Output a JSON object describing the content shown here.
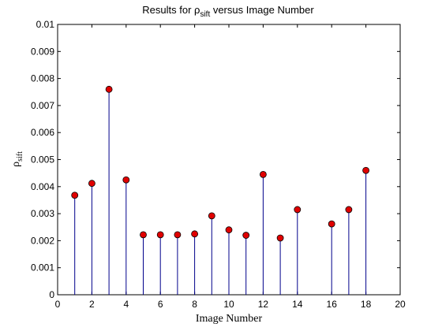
{
  "chart_data": {
    "type": "stem",
    "title": "Results for ρsift versus Image Number",
    "title_parts": {
      "pre": "Results for ",
      "symbol": "ρ",
      "sub": "sift",
      "post": " versus Image Number"
    },
    "xlabel": "Image Number",
    "ylabel": {
      "symbol": "ρ",
      "sub": "sift"
    },
    "xlim": [
      0,
      20
    ],
    "ylim": [
      0,
      0.01
    ],
    "x_ticks": [
      0,
      2,
      4,
      6,
      8,
      10,
      12,
      14,
      16,
      18,
      20
    ],
    "x_tick_labels": [
      "0",
      "2",
      "4",
      "6",
      "8",
      "10",
      "12",
      "14",
      "16",
      "18",
      "20"
    ],
    "y_ticks": [
      0,
      0.001,
      0.002,
      0.003,
      0.004,
      0.005,
      0.006,
      0.007,
      0.008,
      0.009,
      0.01
    ],
    "y_tick_labels": [
      "0",
      "0.001",
      "0.002",
      "0.003",
      "0.004",
      "0.005",
      "0.006",
      "0.007",
      "0.008",
      "0.009",
      "0.01"
    ],
    "grid": false,
    "stem_color": "#00008b",
    "marker_color": "#e00000",
    "series": [
      {
        "x": [
          1,
          2,
          3,
          4,
          5,
          6,
          7,
          8,
          9,
          10,
          11,
          12,
          13,
          14,
          16,
          17,
          18
        ],
        "y": [
          0.00368,
          0.00412,
          0.0076,
          0.00425,
          0.00222,
          0.00222,
          0.00222,
          0.00225,
          0.00292,
          0.0024,
          0.0022,
          0.00445,
          0.0021,
          0.00315,
          0.00262,
          0.00315,
          0.0046
        ]
      }
    ]
  }
}
